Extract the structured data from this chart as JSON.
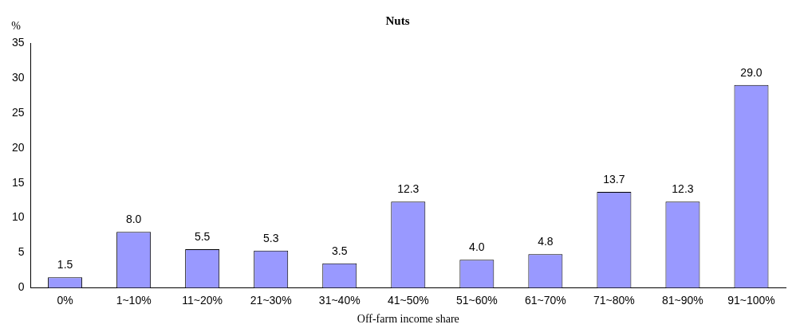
{
  "chart_data": {
    "type": "bar",
    "title": "Nuts",
    "xlabel": "Off-farm income share",
    "ylabel": "%",
    "categories": [
      "0%",
      "1~10%",
      "11~20%",
      "21~30%",
      "31~40%",
      "41~50%",
      "51~60%",
      "61~70%",
      "71~80%",
      "81~90%",
      "91~100%"
    ],
    "values": [
      1.5,
      8.0,
      5.5,
      5.3,
      3.5,
      12.3,
      4.0,
      4.8,
      13.7,
      12.3,
      29.0
    ],
    "value_labels": [
      "1.5",
      "8.0",
      "5.5",
      "5.3",
      "3.5",
      "12.3",
      "4.0",
      "4.8",
      "13.7",
      "12.3",
      "29.0"
    ],
    "color": "#9999ff",
    "ylim": [
      0,
      35
    ],
    "yticks": [
      0,
      5,
      10,
      15,
      20,
      25,
      30,
      35
    ],
    "grid": false,
    "legend": false
  }
}
